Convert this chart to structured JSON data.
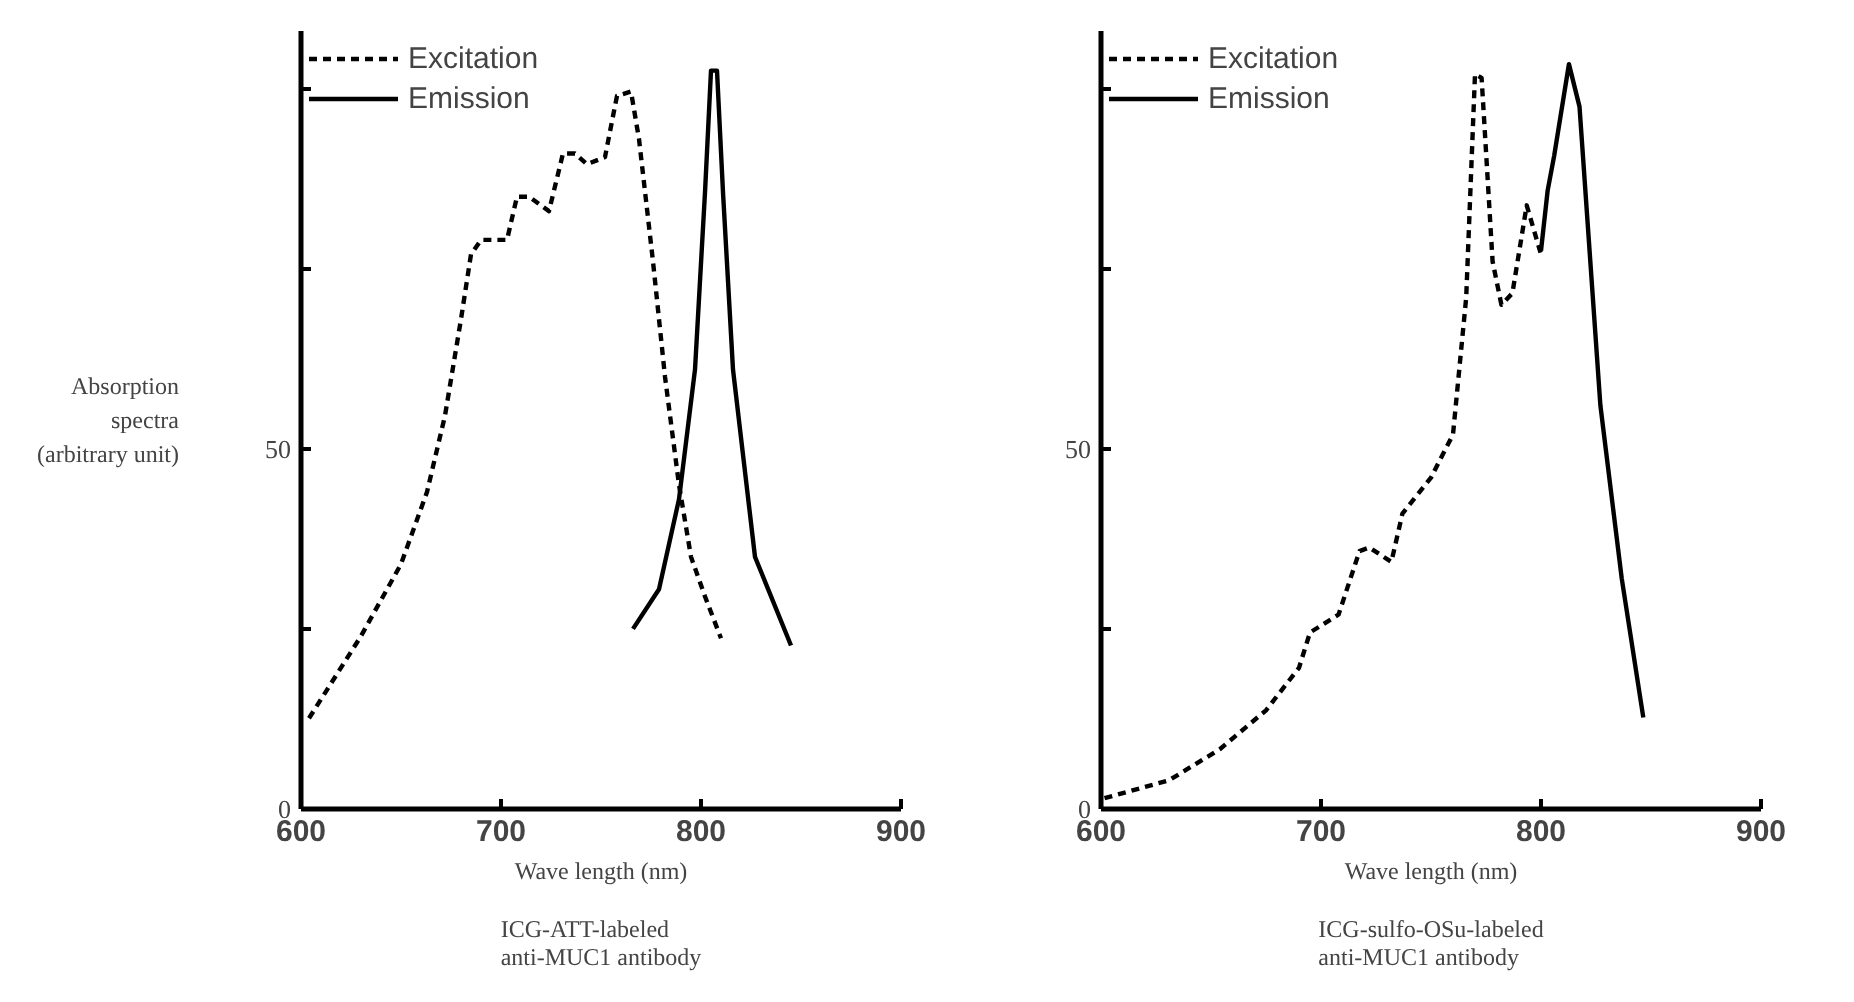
{
  "chart_data": [
    {
      "type": "line",
      "title": "ICG-ATT-labeled\nanti-MUC1 antibody",
      "xlabel": "Wave length (nm)",
      "ylabel": "Absorption\nspectra\n(arbitrary unit)",
      "xlim": [
        600,
        900
      ],
      "ylim": [
        0,
        108
      ],
      "xticks": [
        600,
        700,
        800,
        900
      ],
      "yticks": [
        0,
        {
          "value": 25,
          "label": null
        },
        50,
        {
          "value": 75,
          "label": null
        },
        {
          "value": 100,
          "label": null
        }
      ],
      "grid": false,
      "legend": "top left",
      "series": [
        {
          "name": "Excitation",
          "color": "#000000",
          "line_style": "dashed",
          "x": [
            604,
            630,
            650,
            663,
            672,
            680,
            685,
            690,
            703,
            708,
            714,
            724,
            731,
            737,
            743,
            752,
            758,
            765,
            769,
            776,
            782,
            789,
            795,
            802,
            810
          ],
          "values": [
            12.6,
            24,
            34,
            44,
            54.6,
            68,
            77,
            79,
            79,
            85,
            85,
            83,
            91,
            91,
            89.5,
            90.5,
            99,
            99.6,
            93,
            76,
            60,
            45,
            35,
            29.5,
            23.7
          ]
        },
        {
          "name": "Emission",
          "color": "#000000",
          "line_style": "solid",
          "x": [
            766,
            779,
            789,
            797,
            802,
            805,
            808,
            811,
            816,
            827,
            845
          ],
          "values": [
            25,
            30.5,
            43,
            61,
            85.6,
            102.5,
            102.5,
            85.6,
            61,
            35,
            22.7
          ]
        }
      ]
    },
    {
      "type": "line",
      "title": "ICG-sulfo-OSu-labeled\nanti-MUC1 antibody",
      "xlabel": "Wave length (nm)",
      "xlim": [
        600,
        900
      ],
      "ylim": [
        0,
        108
      ],
      "xticks": [
        600,
        700,
        800,
        900
      ],
      "yticks": [
        0,
        {
          "value": 25,
          "label": null
        },
        50,
        {
          "value": 75,
          "label": null
        },
        {
          "value": 100,
          "label": null
        }
      ],
      "grid": false,
      "legend": "top left",
      "series": [
        {
          "name": "Excitation",
          "color": "#000000",
          "line_style": "dashed",
          "x": [
            601.6,
            631,
            654,
            675,
            690,
            695,
            708,
            717.5,
            722,
            732,
            737,
            750,
            760,
            766,
            770,
            773,
            778,
            782,
            787,
            793.5,
            800
          ],
          "values": [
            1.5,
            4,
            8.3,
            13.7,
            19.6,
            24.5,
            27,
            35.8,
            36.3,
            34.3,
            41,
            46,
            52,
            71,
            102,
            101.5,
            76,
            70,
            71.6,
            83.8,
            77
          ]
        },
        {
          "name": "Emission",
          "color": "#000000",
          "line_style": "solid",
          "x": [
            800,
            803,
            806,
            812.7,
            817.5,
            827,
            836.7,
            846.5
          ],
          "values": [
            77.5,
            85.8,
            90.7,
            103.4,
            97.5,
            56,
            32,
            12.7
          ]
        }
      ]
    }
  ]
}
